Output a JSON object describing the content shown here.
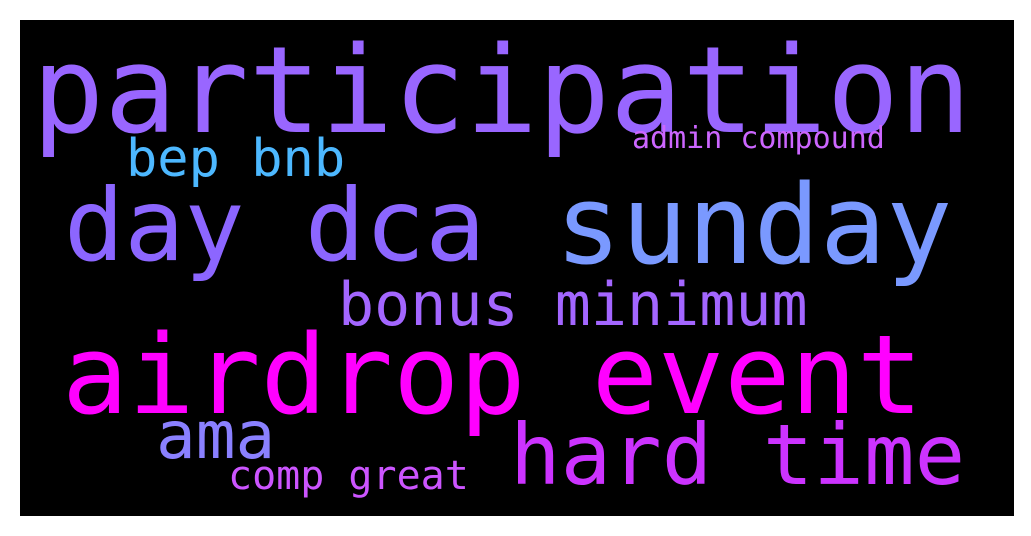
{
  "words": {
    "participation": {
      "text": "participation",
      "color": "#9966ff"
    },
    "bep_bnb": {
      "text": "bep bnb",
      "color": "#4db8ff"
    },
    "admin_compound": {
      "text": "admin compound",
      "color": "#cc66ff"
    },
    "day_dca": {
      "text": "day dca",
      "color": "#8c66ff"
    },
    "sunday": {
      "text": "sunday",
      "color": "#7a99ff"
    },
    "bonus_minimum": {
      "text": "bonus minimum",
      "color": "#a366ff"
    },
    "airdrop_event": {
      "text": "airdrop event",
      "color": "#ff00ff"
    },
    "ama": {
      "text": "ama",
      "color": "#8a80ff"
    },
    "hard_time": {
      "text": "hard time",
      "color": "#cc33ff"
    },
    "comp_great": {
      "text": "comp great",
      "color": "#cc55ff"
    }
  }
}
